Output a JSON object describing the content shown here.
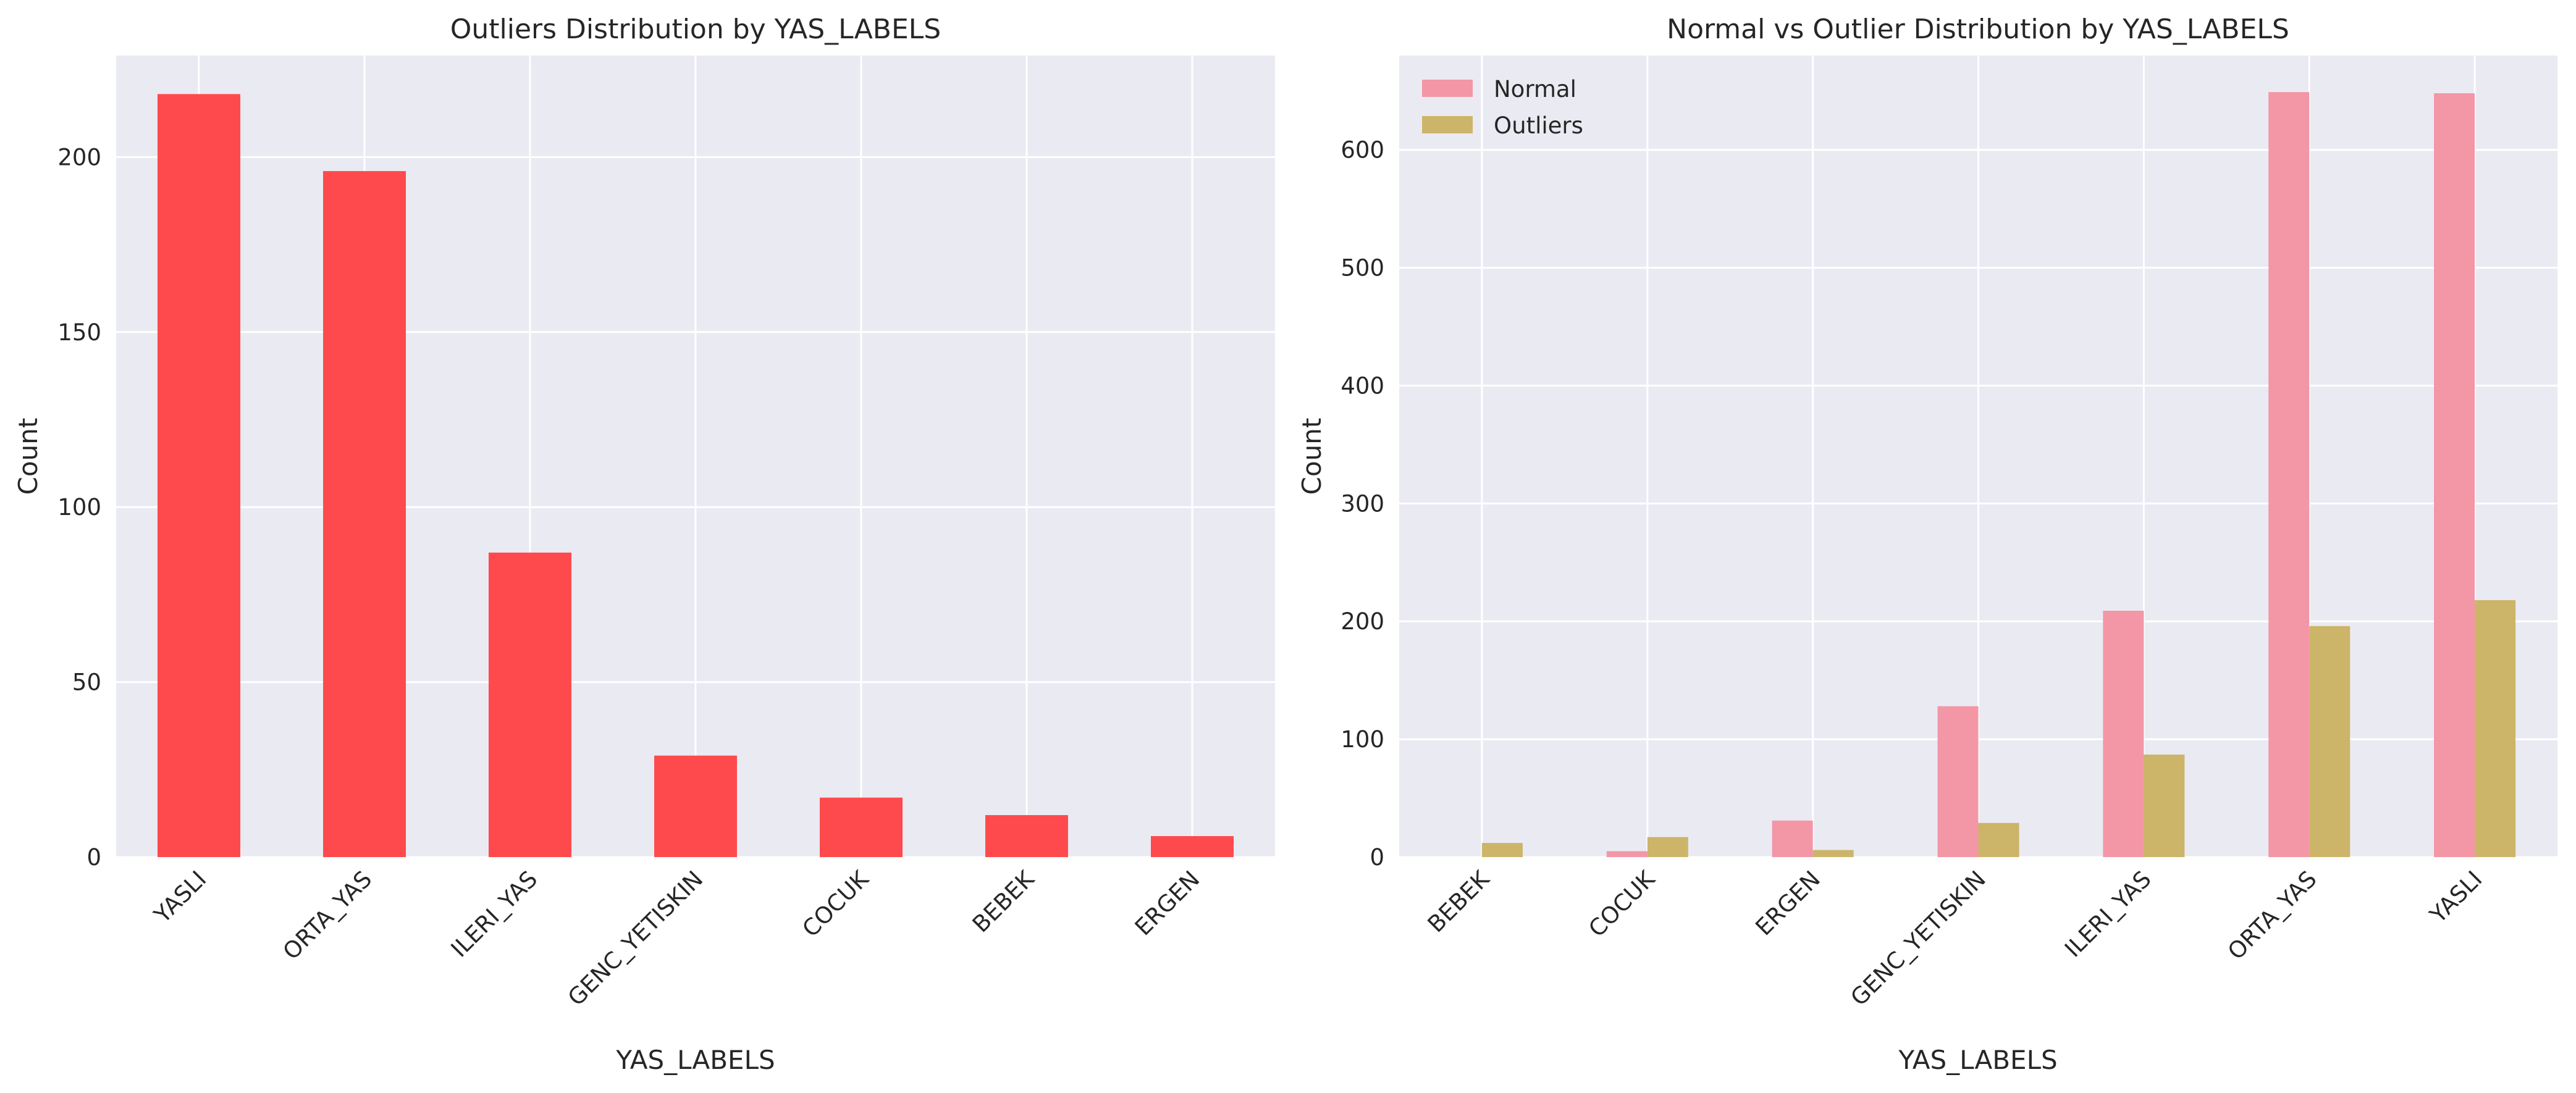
{
  "chart_data": [
    {
      "type": "bar",
      "title": "Outliers Distribution by YAS_LABELS",
      "xlabel": "YAS_LABELS",
      "ylabel": "Count",
      "categories": [
        "YASLI",
        "ORTA_YAS",
        "ILERI_YAS",
        "GENC_YETISKIN",
        "COCUK",
        "BEBEK",
        "ERGEN"
      ],
      "values": [
        218,
        196,
        87,
        29,
        17,
        12,
        6
      ],
      "ylim": [
        0,
        229
      ],
      "yticks": [
        0,
        50,
        100,
        150,
        200
      ],
      "grid": true,
      "bar_color": "#ff4a4d"
    },
    {
      "type": "bar",
      "title": "Normal vs Outlier Distribution by YAS_LABELS",
      "xlabel": "YAS_LABELS",
      "ylabel": "Count",
      "categories": [
        "BEBEK",
        "COCUK",
        "ERGEN",
        "GENC_YETISKIN",
        "ILERI_YAS",
        "ORTA_YAS",
        "YASLI"
      ],
      "series": [
        {
          "name": "Normal",
          "values": [
            0,
            5,
            31,
            128,
            209,
            649,
            648
          ],
          "color": "#f396a6"
        },
        {
          "name": "Outliers",
          "values": [
            12,
            17,
            6,
            29,
            87,
            196,
            218
          ],
          "color": "#ccb469"
        }
      ],
      "ylim": [
        0,
        680
      ],
      "yticks": [
        0,
        100,
        200,
        300,
        400,
        500,
        600
      ],
      "grid": true,
      "legend": "top-left"
    }
  ]
}
